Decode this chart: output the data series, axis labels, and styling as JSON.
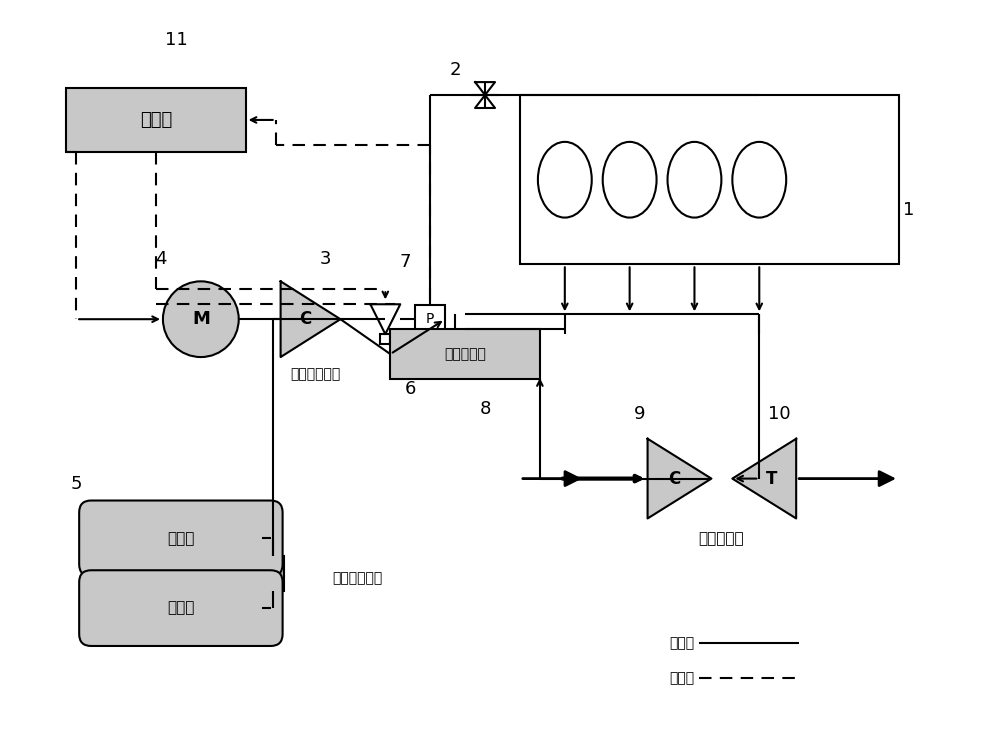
{
  "bg_color": "#ffffff",
  "line_color": "#000000",
  "gray_fill": "#b0b0b0",
  "light_gray_fill": "#c8c8c8",
  "box_gray": "#c0c0c0",
  "dashed_color": "#000000",
  "text_color": "#000000",
  "font_family": "SimHei",
  "labels": {
    "controller": "控制器",
    "motor": "M",
    "compressor_e": "C",
    "pressure_sensor": "P",
    "intercooler": "进气中冷器",
    "tank1": "储气罐",
    "tank2": "储气罐",
    "nozzle_label": "压缩空气呗嘴",
    "four_way": "四回路保护阀",
    "turbo_label": "涂轮增压器",
    "C_turbo": "C",
    "T_turbo": "T",
    "gas_flow": "气体流",
    "signal_flow": "信号流",
    "num_1": "1",
    "num_2": "2",
    "num_3": "3",
    "num_4": "4",
    "num_5": "5",
    "num_6": "6",
    "num_7": "7",
    "num_8": "8",
    "num_9": "9",
    "num_10": "10",
    "num_11": "11"
  }
}
